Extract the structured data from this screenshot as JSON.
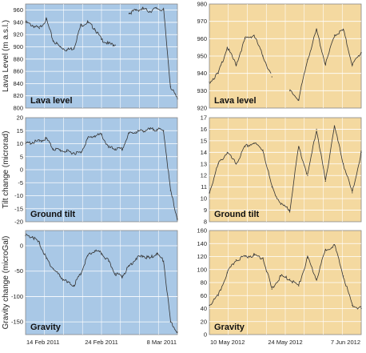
{
  "colors": {
    "left_panel_bg": "#a9c8e6",
    "right_panel_bg": "#f4d9a0",
    "grid": "#ffffff",
    "line": "#333333",
    "frame": "#888888"
  },
  "chart_data": [
    {
      "type": "line",
      "panel": "left-lava",
      "label": "Lava level",
      "ylabel": "Lava Level (m a.s.l.)",
      "ylim": [
        800,
        970
      ],
      "yticks": [
        800,
        820,
        840,
        860,
        880,
        900,
        920,
        940,
        960
      ],
      "x": [
        "2011-02-14",
        "2011-02-15",
        "2011-02-16",
        "2011-02-17",
        "2011-02-18",
        "2011-02-19",
        "2011-02-20",
        "2011-02-21",
        "2011-02-22",
        "2011-02-23",
        "2011-02-24",
        "2011-02-25",
        "2011-02-26",
        "2011-02-27",
        "2011-02-28",
        "2011-03-01",
        "2011-03-02",
        "2011-03-03",
        "2011-03-04",
        "2011-03-05",
        "2011-03-06",
        "2011-03-07",
        "2011-03-08"
      ],
      "values": [
        940,
        935,
        930,
        945,
        910,
        900,
        895,
        898,
        935,
        940,
        930,
        912,
        905,
        903,
        null,
        955,
        960,
        962,
        958,
        963,
        960,
        835,
        815
      ]
    },
    {
      "type": "line",
      "panel": "right-lava",
      "label": "Lava level",
      "ylim": [
        920,
        980
      ],
      "yticks": [
        920,
        930,
        940,
        950,
        960,
        970,
        980
      ],
      "x": [
        "2012-05-10",
        "2012-05-12",
        "2012-05-14",
        "2012-05-16",
        "2012-05-18",
        "2012-05-20",
        "2012-05-22",
        "2012-05-24",
        "2012-05-26",
        "2012-05-28",
        "2012-05-30",
        "2012-06-01",
        "2012-06-03",
        "2012-06-05",
        "2012-06-07",
        "2012-06-09",
        "2012-06-11",
        "2012-06-13"
      ],
      "values": [
        935,
        940,
        955,
        945,
        960,
        962,
        950,
        938,
        null,
        930,
        925,
        948,
        965,
        945,
        962,
        965,
        945,
        952
      ]
    },
    {
      "type": "line",
      "panel": "left-tilt",
      "label": "Ground tilt",
      "ylabel": "Tilt change (microrad)",
      "ylim": [
        -20,
        20
      ],
      "yticks": [
        -20,
        -15,
        -10,
        -5,
        0,
        5,
        10,
        15,
        20
      ],
      "x": [
        "2011-02-14",
        "2011-02-15",
        "2011-02-16",
        "2011-02-17",
        "2011-02-18",
        "2011-02-19",
        "2011-02-20",
        "2011-02-21",
        "2011-02-22",
        "2011-02-23",
        "2011-02-24",
        "2011-02-25",
        "2011-02-26",
        "2011-02-27",
        "2011-02-28",
        "2011-03-01",
        "2011-03-02",
        "2011-03-03",
        "2011-03-04",
        "2011-03-05",
        "2011-03-06",
        "2011-03-07",
        "2011-03-08"
      ],
      "values": [
        10,
        10.5,
        11,
        12,
        8,
        7.5,
        7,
        6.5,
        6.5,
        12,
        13,
        13.5,
        8.5,
        8,
        7.8,
        14,
        14.5,
        15,
        15.5,
        15.5,
        15,
        -8,
        -19
      ]
    },
    {
      "type": "line",
      "panel": "right-tilt",
      "label": "Ground tilt",
      "ylim": [
        8,
        17
      ],
      "yticks": [
        8,
        9,
        10,
        11,
        12,
        13,
        14,
        15,
        16,
        17
      ],
      "x": [
        "2012-05-10",
        "2012-05-12",
        "2012-05-14",
        "2012-05-16",
        "2012-05-18",
        "2012-05-20",
        "2012-05-22",
        "2012-05-24",
        "2012-05-26",
        "2012-05-28",
        "2012-05-30",
        "2012-06-01",
        "2012-06-03",
        "2012-06-05",
        "2012-06-07",
        "2012-06-09",
        "2012-06-11",
        "2012-06-13"
      ],
      "values": [
        10.5,
        13,
        14,
        13,
        14.5,
        14.8,
        14.2,
        11,
        9.5,
        9,
        14.5,
        12,
        16,
        11.5,
        16.3,
        13,
        10.5,
        14
      ]
    },
    {
      "type": "line",
      "panel": "left-gravity",
      "label": "Gravity",
      "ylabel": "Gravity change (microGal)",
      "ylim": [
        -175,
        30
      ],
      "yticks": [
        -150,
        -100,
        -50,
        0
      ],
      "xticks": [
        "14 Feb 2011",
        "24 Feb  2011",
        "8 Mar 2011"
      ],
      "x": [
        "2011-02-14",
        "2011-02-15",
        "2011-02-16",
        "2011-02-17",
        "2011-02-18",
        "2011-02-19",
        "2011-02-20",
        "2011-02-21",
        "2011-02-22",
        "2011-02-23",
        "2011-02-24",
        "2011-02-25",
        "2011-02-26",
        "2011-02-27",
        "2011-02-28",
        "2011-03-01",
        "2011-03-02",
        "2011-03-03",
        "2011-03-04",
        "2011-03-05",
        "2011-03-06",
        "2011-03-07",
        "2011-03-08"
      ],
      "values": [
        20,
        18,
        5,
        -25,
        -45,
        -60,
        -72,
        -78,
        -55,
        -20,
        -10,
        -15,
        -30,
        -55,
        -60,
        -40,
        -25,
        -20,
        -25,
        -15,
        -30,
        -150,
        -170
      ]
    },
    {
      "type": "line",
      "panel": "right-gravity",
      "label": "Gravity",
      "ylim": [
        0,
        160
      ],
      "yticks": [
        0,
        20,
        40,
        60,
        80,
        100,
        120,
        140,
        160
      ],
      "xticks": [
        "10 May 2012",
        "24 May 2012",
        "7 Jun 2012"
      ],
      "x": [
        "2012-05-10",
        "2012-05-12",
        "2012-05-14",
        "2012-05-16",
        "2012-05-18",
        "2012-05-20",
        "2012-05-22",
        "2012-05-24",
        "2012-05-26",
        "2012-05-28",
        "2012-05-30",
        "2012-06-01",
        "2012-06-03",
        "2012-06-05",
        "2012-06-07",
        "2012-06-09",
        "2012-06-11",
        "2012-06-13"
      ],
      "values": [
        45,
        60,
        95,
        115,
        120,
        122,
        118,
        70,
        90,
        85,
        75,
        118,
        85,
        130,
        138,
        90,
        45,
        40
      ]
    }
  ]
}
